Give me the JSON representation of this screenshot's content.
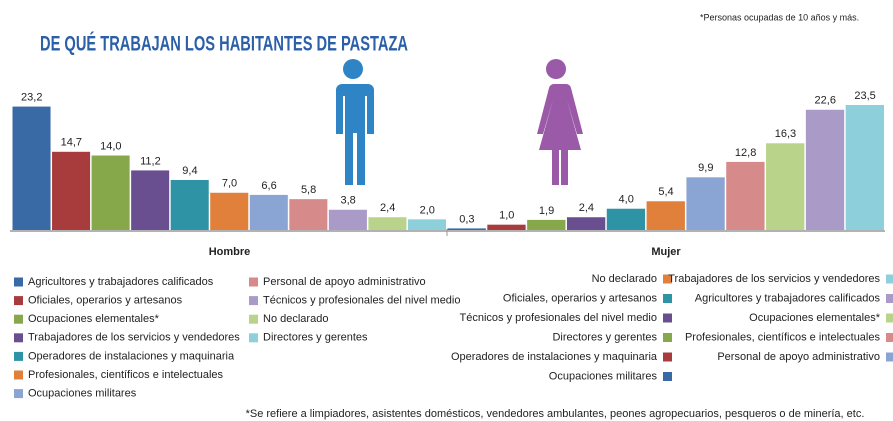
{
  "title": "DE QUÉ TRABAJAN LOS HABITANTES DE PASTAZA",
  "note": "*Personas ocupadas de 10 años y más.",
  "footnote": "*Se refiere a limpiadores, asistentes domésticos, vendedores ambulantes, peones agropecuarios, pesqueros o de minería, etc.",
  "chart_data": [
    {
      "type": "bar",
      "xlabel": "Hombre",
      "ylim": [
        0,
        25
      ],
      "series": [
        {
          "name": "Agricultores y trabajadores calificados",
          "color": "#3a6aa6",
          "values": [
            23.2
          ],
          "value_labels": [
            "23,2"
          ]
        },
        {
          "name": "Oficiales, operarios y artesanos",
          "color": "#a83c3c",
          "values": [
            14.7
          ],
          "value_labels": [
            "14,7"
          ]
        },
        {
          "name": "Ocupaciones elementales*",
          "color": "#86a84a",
          "values": [
            14.0
          ],
          "value_labels": [
            "14,0"
          ]
        },
        {
          "name": "Trabajadores de los servicios y vendedores",
          "color": "#6a4f90",
          "values": [
            11.2
          ],
          "value_labels": [
            "11,2"
          ]
        },
        {
          "name": "Operadores de instalaciones y maquinaria",
          "color": "#2f93a6",
          "values": [
            9.4
          ],
          "value_labels": [
            "9,4"
          ]
        },
        {
          "name": "Profesionales, científicos e intelectuales",
          "color": "#e0803a",
          "values": [
            7.0
          ],
          "value_labels": [
            "7,0"
          ]
        },
        {
          "name": "Ocupaciones militares",
          "color": "#8aa4d4",
          "values": [
            6.6
          ],
          "value_labels": [
            "6,6"
          ]
        },
        {
          "name": "Personal de apoyo administrativo",
          "color": "#d68a8a",
          "values": [
            5.8
          ],
          "value_labels": [
            "5,8"
          ]
        },
        {
          "name": "Técnicos y profesionales del nivel medio",
          "color": "#a99ac8",
          "values": [
            3.8
          ],
          "value_labels": [
            "3,8"
          ]
        },
        {
          "name": "No declarado",
          "color": "#b9d48a",
          "values": [
            2.4
          ],
          "value_labels": [
            "2,4"
          ]
        },
        {
          "name": "Directores y gerentes",
          "color": "#8ecfdc",
          "values": [
            2.0
          ],
          "value_labels": [
            "2,0"
          ]
        }
      ]
    },
    {
      "type": "bar",
      "xlabel": "Mujer",
      "ylim": [
        0,
        25
      ],
      "series": [
        {
          "name": "Ocupaciones militares",
          "color": "#3a6aa6",
          "values": [
            0.3
          ],
          "value_labels": [
            "0,3"
          ]
        },
        {
          "name": "Operadores de instalaciones y maquinaria",
          "color": "#a83c3c",
          "values": [
            1.0
          ],
          "value_labels": [
            "1,0"
          ]
        },
        {
          "name": "Directores y gerentes",
          "color": "#86a84a",
          "values": [
            1.9
          ],
          "value_labels": [
            "1,9"
          ]
        },
        {
          "name": "Técnicos y profesionales del nivel medio",
          "color": "#6a4f90",
          "values": [
            2.4
          ],
          "value_labels": [
            "2,4"
          ]
        },
        {
          "name": "Oficiales, operarios y artesanos",
          "color": "#2f93a6",
          "values": [
            4.0
          ],
          "value_labels": [
            "4,0"
          ]
        },
        {
          "name": "No declarado",
          "color": "#e0803a",
          "values": [
            5.4
          ],
          "value_labels": [
            "5,4"
          ]
        },
        {
          "name": "Personal de apoyo administrativo",
          "color": "#8aa4d4",
          "values": [
            9.9
          ],
          "value_labels": [
            "9,9"
          ]
        },
        {
          "name": "Profesionales, científicos e intelectuales",
          "color": "#d68a8a",
          "values": [
            12.8
          ],
          "value_labels": [
            "12,8"
          ]
        },
        {
          "name": "Ocupaciones elementales*",
          "color": "#b9d48a",
          "values": [
            16.3
          ],
          "value_labels": [
            "16,3"
          ]
        },
        {
          "name": "Agricultores y trabajadores calificados",
          "color": "#a99ac8",
          "values": [
            22.6
          ],
          "value_labels": [
            "22,6"
          ]
        },
        {
          "name": "Trabajadores de los servicios y vendedores",
          "color": "#8ecfdc",
          "values": [
            23.5
          ],
          "value_labels": [
            "23,5"
          ]
        }
      ]
    }
  ]
}
